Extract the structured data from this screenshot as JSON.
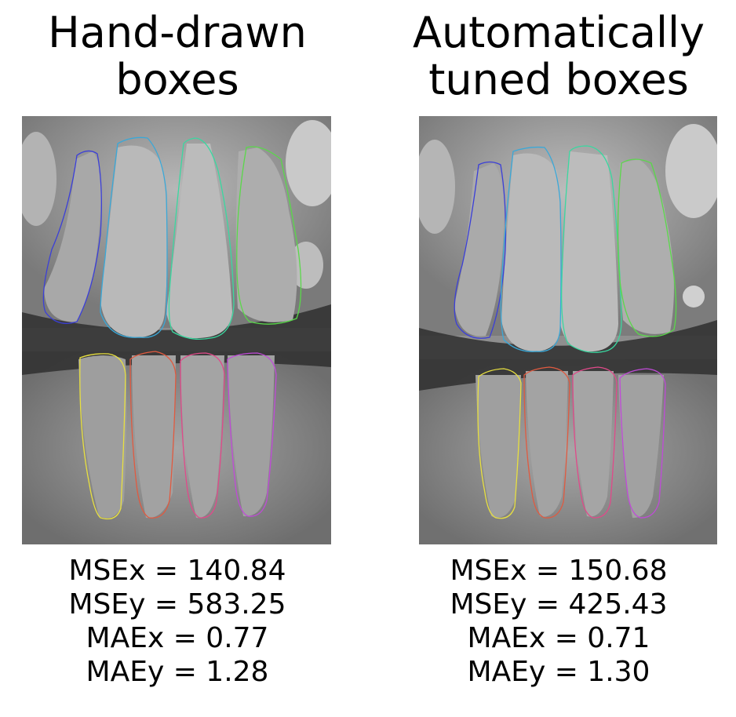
{
  "panels": [
    {
      "title_line1": "Hand-drawn",
      "title_line2": "boxes",
      "image_label": "dental x-ray with hand-drawn tooth contours",
      "metrics": [
        "MSEx = 140.84",
        "MSEy = 583.25",
        "MAEx = 0.77",
        "MAEy = 1.28"
      ]
    },
    {
      "title_line1": "Automatically",
      "title_line2": "tuned boxes",
      "image_label": "dental x-ray with automatically tuned tooth contours",
      "metrics": [
        "MSEx = 150.68",
        "MSEy = 425.43",
        "MAEx = 0.71",
        "MAEy = 1.30"
      ]
    }
  ],
  "contour_colors": {
    "upper": [
      "#3b3fd8",
      "#3aa8d8",
      "#3ad8a0",
      "#5ad84a"
    ],
    "lower": [
      "#e8e040",
      "#e05a40",
      "#e04a8a",
      "#c04ad8"
    ]
  }
}
